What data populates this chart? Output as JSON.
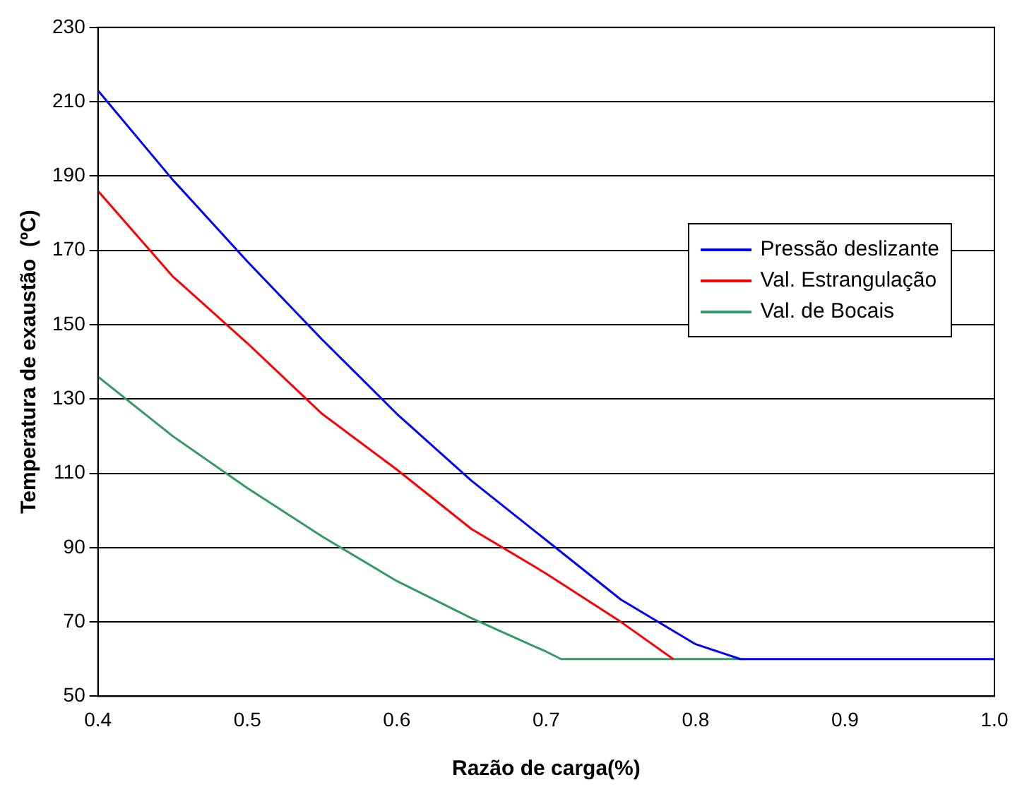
{
  "chart_data": {
    "type": "line",
    "xlabel": "Razão de carga(%)",
    "ylabel": "Temperatura de exaustão  (ºC)",
    "xlim": [
      0.4,
      1.0
    ],
    "xticks": [
      {
        "value": 0.4,
        "label": "0.4"
      },
      {
        "value": 0.5,
        "label": "0.5"
      },
      {
        "value": 0.6,
        "label": "0.6"
      },
      {
        "value": 0.7,
        "label": "0.7"
      },
      {
        "value": 0.8,
        "label": "0.8"
      },
      {
        "value": 0.9,
        "label": "0.9"
      },
      {
        "value": 1.0,
        "label": "1.0"
      }
    ],
    "ylim": [
      50,
      230
    ],
    "yticks": [
      50,
      70,
      90,
      110,
      130,
      150,
      170,
      190,
      210,
      230
    ],
    "grid": "y",
    "legend": "right",
    "marker": "none",
    "series": [
      {
        "name": "Pressão deslizante",
        "color": "#0000ff",
        "x": [
          0.4,
          0.45,
          0.5,
          0.55,
          0.6,
          0.65,
          0.7,
          0.75,
          0.8,
          0.83,
          1.0
        ],
        "values": [
          213,
          189,
          167,
          146,
          126,
          108,
          92,
          76,
          64,
          60,
          60
        ]
      },
      {
        "name": "Val. Estrangulação",
        "color": "#ff0000",
        "x": [
          0.4,
          0.45,
          0.5,
          0.55,
          0.6,
          0.65,
          0.7,
          0.75,
          0.785
        ],
        "values": [
          186,
          163,
          145,
          126,
          111,
          95,
          83,
          70,
          60
        ]
      },
      {
        "name": "Val. de Bocais",
        "color": "#339966",
        "x": [
          0.4,
          0.45,
          0.5,
          0.55,
          0.6,
          0.65,
          0.7,
          0.71,
          0.83
        ],
        "values": [
          136,
          120,
          106,
          93,
          81,
          71,
          62,
          60,
          60
        ]
      }
    ]
  }
}
